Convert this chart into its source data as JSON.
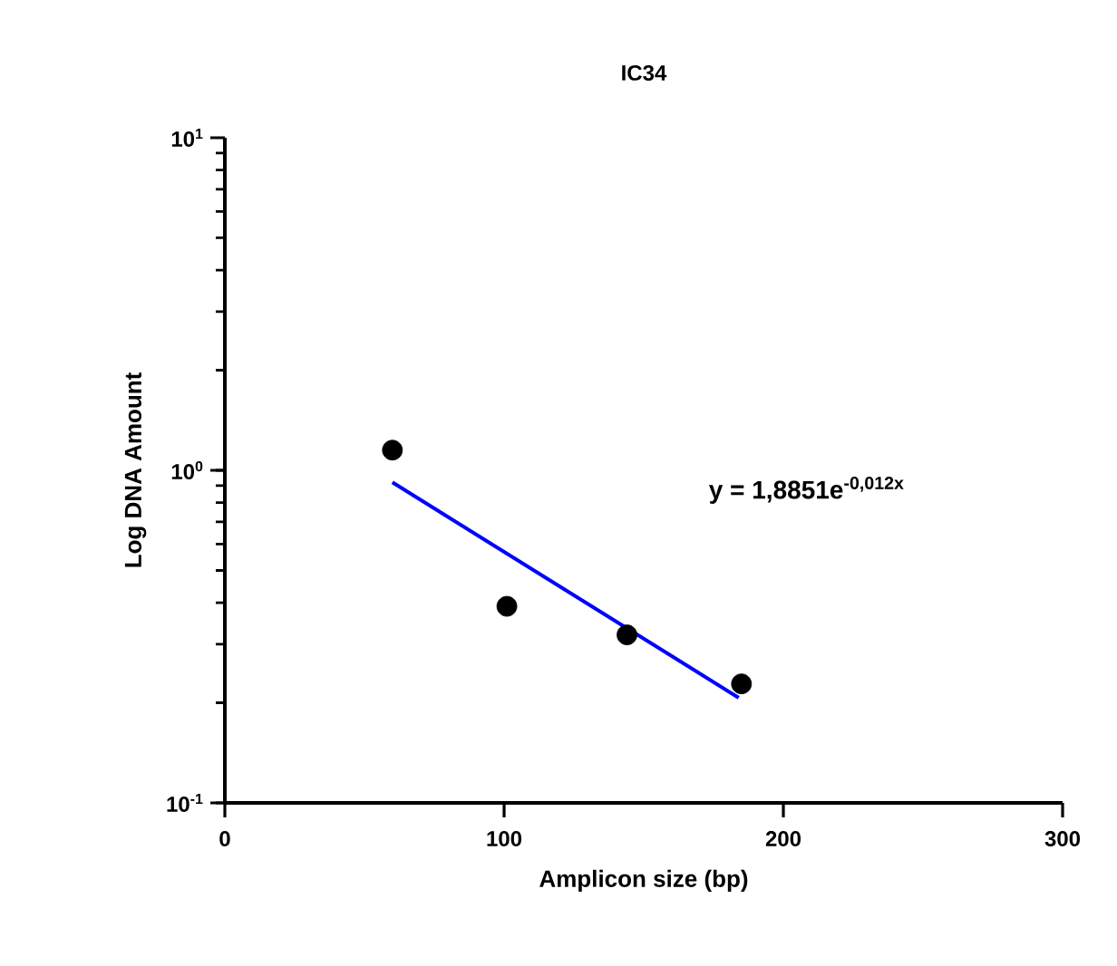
{
  "chart_data": {
    "type": "scatter",
    "title": "IC34",
    "xlabel": "Amplicon size (bp)",
    "ylabel": "Log DNA Amount",
    "log": "y",
    "xlim": [
      0,
      300
    ],
    "xticks": [
      0,
      100,
      200,
      300
    ],
    "ylim": [
      0.1,
      10
    ],
    "yticks": [
      {
        "value": 0.1,
        "label": "10$^{-1}$"
      },
      {
        "value": 1,
        "label": "10$^{0}$"
      },
      {
        "value": 10,
        "label": "10$^{1}$"
      }
    ],
    "series": [
      {
        "marker": "circle",
        "color": "#000000",
        "x": [
          60,
          101,
          144,
          185
        ],
        "values": [
          1.15,
          0.39,
          0.32,
          0.228
        ]
      },
      {
        "type": "line",
        "color": "#0000ff",
        "x": [
          60,
          184
        ],
        "values": [
          0.92,
          0.207
        ]
      }
    ],
    "annotations": [
      "y = 1,8851e$^{-0,012x}$"
    ]
  }
}
